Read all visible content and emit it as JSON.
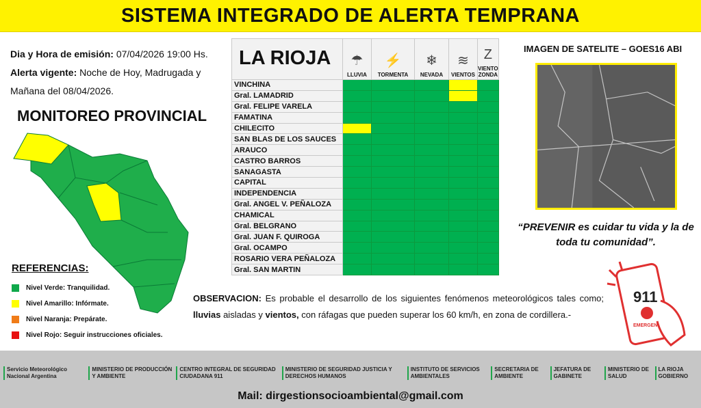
{
  "title": "SISTEMA INTEGRADO DE ALERTA TEMPRANA",
  "info": {
    "emision_label": "Dia y Hora de emisión:",
    "emision_value": " 07/04/2026  19:00 Hs.",
    "vigente_label": "Alerta vigente:",
    "vigente_value": " Noche de Hoy, Madrugada y Mañana del 08/04/2026."
  },
  "monitoreo": "MONITOREO PROVINCIAL",
  "references": {
    "title": "REFERENCIAS:",
    "items": [
      {
        "label": "Nivel Verde: Tranquilidad.",
        "color": "#0fa84b"
      },
      {
        "label": "Nivel Amarillo: Infórmate.",
        "color": "#ffff00"
      },
      {
        "label": "Nivel Naranja: Prepárate.",
        "color": "#f07c18"
      },
      {
        "label": "Nivel Rojo: Seguir instrucciones oficiales.",
        "color": "#e81010"
      }
    ]
  },
  "table": {
    "title": "LA RIOJA",
    "columns": [
      {
        "label": "LLUVIA",
        "icon": "rain-icon"
      },
      {
        "label": "TORMENTA",
        "icon": "storm-icon"
      },
      {
        "label": "NEVADA",
        "icon": "snow-icon"
      },
      {
        "label": "VIENTOS",
        "icon": "wind-icon"
      },
      {
        "label": "VIENTO ZONDA",
        "icon": "zonda-icon"
      }
    ],
    "rows": [
      {
        "name": "VINCHINA",
        "levels": [
          "verde",
          "verde",
          "verde",
          "amarillo",
          "verde"
        ]
      },
      {
        "name": "Gral. LAMADRID",
        "levels": [
          "verde",
          "verde",
          "verde",
          "amarillo",
          "verde"
        ]
      },
      {
        "name": "Gral. FELIPE VARELA",
        "levels": [
          "verde",
          "verde",
          "verde",
          "verde",
          "verde"
        ]
      },
      {
        "name": "FAMATINA",
        "levels": [
          "verde",
          "verde",
          "verde",
          "verde",
          "verde"
        ]
      },
      {
        "name": "CHILECITO",
        "levels": [
          "amarillo",
          "verde",
          "verde",
          "verde",
          "verde"
        ]
      },
      {
        "name": "SAN BLAS DE LOS SAUCES",
        "levels": [
          "verde",
          "verde",
          "verde",
          "verde",
          "verde"
        ]
      },
      {
        "name": "ARAUCO",
        "levels": [
          "verde",
          "verde",
          "verde",
          "verde",
          "verde"
        ]
      },
      {
        "name": "CASTRO BARROS",
        "levels": [
          "verde",
          "verde",
          "verde",
          "verde",
          "verde"
        ]
      },
      {
        "name": "SANAGASTA",
        "levels": [
          "verde",
          "verde",
          "verde",
          "verde",
          "verde"
        ]
      },
      {
        "name": "CAPITAL",
        "levels": [
          "verde",
          "verde",
          "verde",
          "verde",
          "verde"
        ]
      },
      {
        "name": "INDEPENDENCIA",
        "levels": [
          "verde",
          "verde",
          "verde",
          "verde",
          "verde"
        ]
      },
      {
        "name": "Gral. ANGEL V. PEÑALOZA",
        "levels": [
          "verde",
          "verde",
          "verde",
          "verde",
          "verde"
        ]
      },
      {
        "name": "CHAMICAL",
        "levels": [
          "verde",
          "verde",
          "verde",
          "verde",
          "verde"
        ]
      },
      {
        "name": "Gral. BELGRANO",
        "levels": [
          "verde",
          "verde",
          "verde",
          "verde",
          "verde"
        ]
      },
      {
        "name": "Gral. JUAN F. QUIROGA",
        "levels": [
          "verde",
          "verde",
          "verde",
          "verde",
          "verde"
        ]
      },
      {
        "name": "Gral. OCAMPO",
        "levels": [
          "verde",
          "verde",
          "verde",
          "verde",
          "verde"
        ]
      },
      {
        "name": "ROSARIO VERA PEÑALOZA",
        "levels": [
          "verde",
          "verde",
          "verde",
          "verde",
          "verde"
        ]
      },
      {
        "name": "Gral. SAN MARTIN",
        "levels": [
          "verde",
          "verde",
          "verde",
          "verde",
          "verde"
        ]
      }
    ]
  },
  "colors": {
    "verde": "#00b050",
    "amarillo": "#ffff00",
    "title_bg": "#fff200"
  },
  "satellite": {
    "title": "IMAGEN DE SATELITE – GOES16 ABI"
  },
  "quote": "“PREVENIR es cuidar tu vida y la de toda tu comunidad”.",
  "observacion": {
    "label": "OBSERVACION:",
    "t1": " Es probable el desarrollo de los siguientes fenómenos meteorológicos tales como; ",
    "b1": "lluvias",
    "t2": " aisladas y ",
    "b2": "vientos,",
    "t3": " con ráfagas que pueden superar los 60 km/h, en zona de cordillera.-"
  },
  "phone": {
    "number": "911",
    "label": "EMERGENCIAS"
  },
  "footer": {
    "logos": [
      "Servicio Meteorológico Nacional Argentina",
      "MINISTERIO DE PRODUCCIÓN Y AMBIENTE",
      "CENTRO INTEGRAL DE SEGURIDAD CIUDADANA 911",
      "MINISTERIO DE SEGURIDAD JUSTICIA Y DERECHOS HUMANOS",
      "INSTITUTO DE SERVICIOS AMBIENTALES",
      "SECRETARIA DE AMBIENTE",
      "JEFATURA DE GABINETE",
      "MINISTERIO DE SALUD",
      "LA RIOJA GOBIERNO"
    ],
    "mail": "Mail: dirgestionsocioambiental@gmail.com"
  }
}
